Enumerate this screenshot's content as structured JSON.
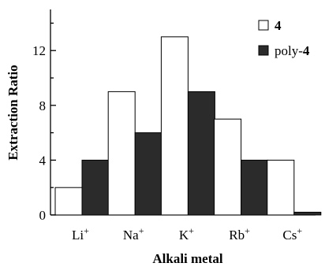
{
  "chart_data": {
    "type": "bar",
    "title": "",
    "xlabel": "Alkali metal",
    "ylabel": "Extraction Ratio",
    "categories": [
      {
        "base": "Li",
        "sup": "+"
      },
      {
        "base": "Na",
        "sup": "+"
      },
      {
        "base": "K",
        "sup": "+"
      },
      {
        "base": "Rb",
        "sup": "+"
      },
      {
        "base": "Cs",
        "sup": "+"
      }
    ],
    "series": [
      {
        "name": "4",
        "name_prefix": "",
        "name_bold": "4",
        "style": "open",
        "color": "#ffffff",
        "values": [
          2,
          9,
          13,
          7,
          4
        ]
      },
      {
        "name": "poly-4",
        "name_prefix": "poly-",
        "name_bold": "4",
        "style": "filled",
        "color": "#2b2b2b",
        "values": [
          4,
          6,
          9,
          4,
          0.2
        ]
      }
    ],
    "ylim": [
      0,
      15
    ],
    "yticks": [
      0,
      4,
      8,
      12
    ],
    "yminor": [
      2,
      6,
      10,
      14
    ],
    "grid": false,
    "legend": "top-right"
  }
}
